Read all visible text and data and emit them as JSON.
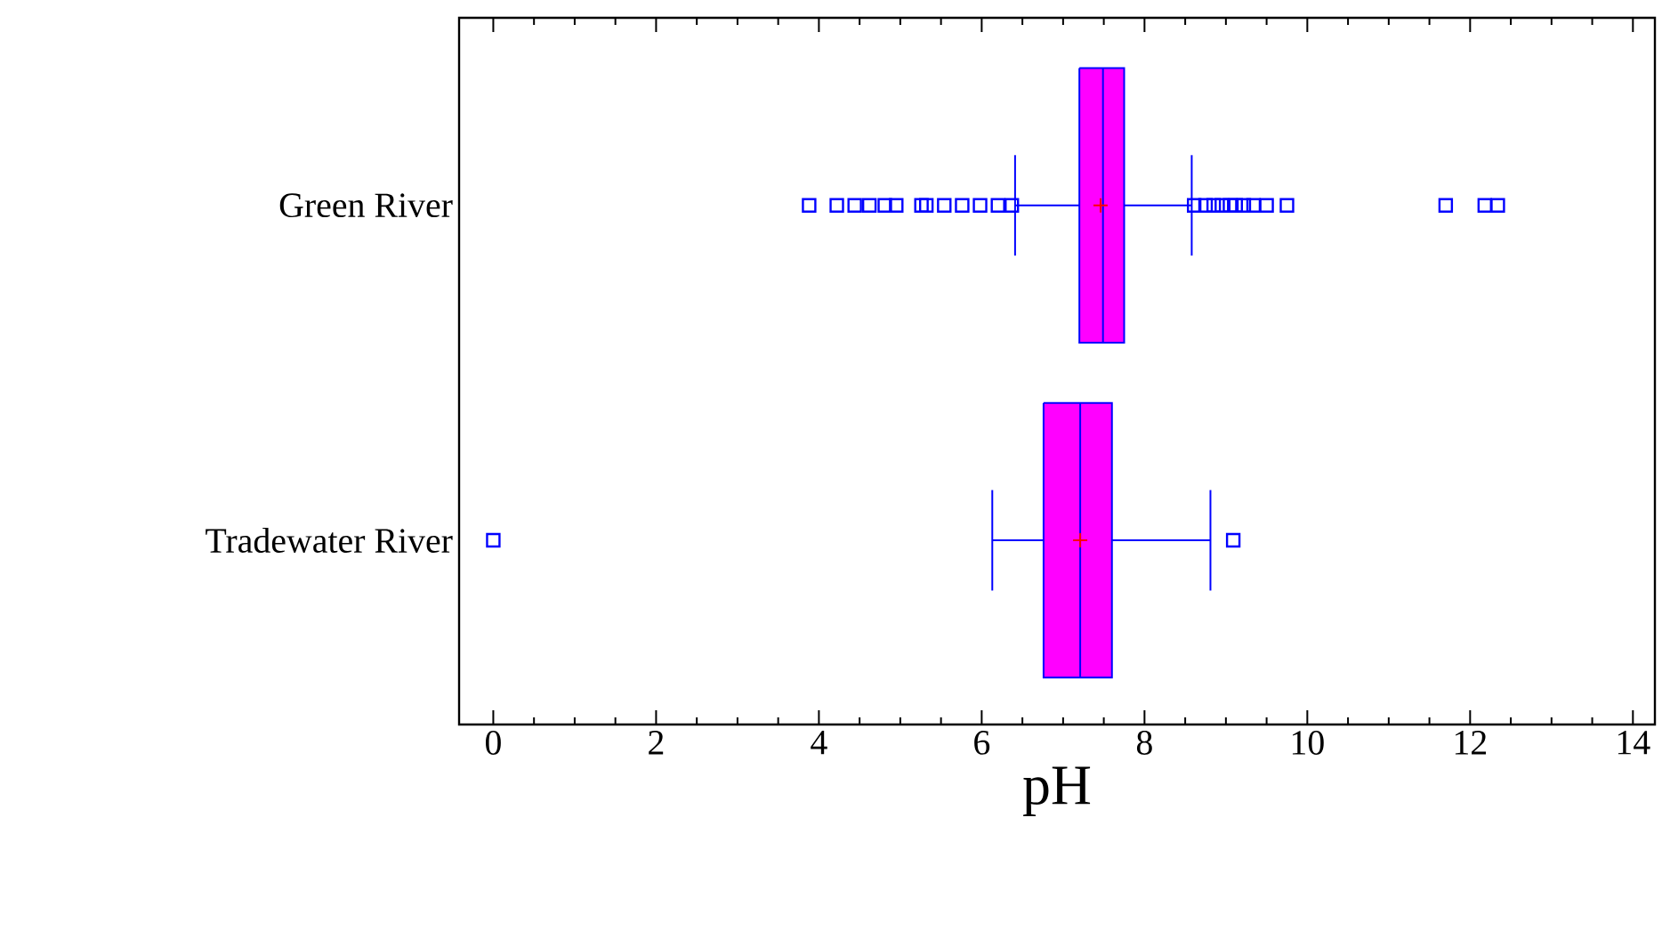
{
  "chart_data": {
    "type": "box",
    "orientation": "horizontal",
    "xlabel": "pH",
    "categories": [
      "Green River",
      "Tradewater River"
    ],
    "boxes": [
      {
        "low": 6.41,
        "q1": 7.2,
        "median": 7.49,
        "q3": 7.75,
        "high": 8.58,
        "mean": 7.46,
        "outliers": [
          3.88,
          4.22,
          4.44,
          4.62,
          4.81,
          4.95,
          5.26,
          5.32,
          5.54,
          5.76,
          5.98,
          6.2,
          6.37,
          8.61,
          8.75,
          8.85,
          8.95,
          9.05,
          9.12,
          9.22,
          9.34,
          9.5,
          9.75,
          11.7,
          12.18,
          12.34
        ]
      },
      {
        "low": 6.13,
        "q1": 6.76,
        "median": 7.21,
        "q3": 7.6,
        "high": 8.81,
        "mean": 7.21,
        "outliers": [
          0,
          9.09
        ]
      }
    ],
    "color": "#ff00ff",
    "xlim": [
      -0.42,
      14.27
    ],
    "xticks": [
      0,
      2,
      4,
      6,
      8,
      10,
      12,
      14
    ],
    "grid": false
  }
}
